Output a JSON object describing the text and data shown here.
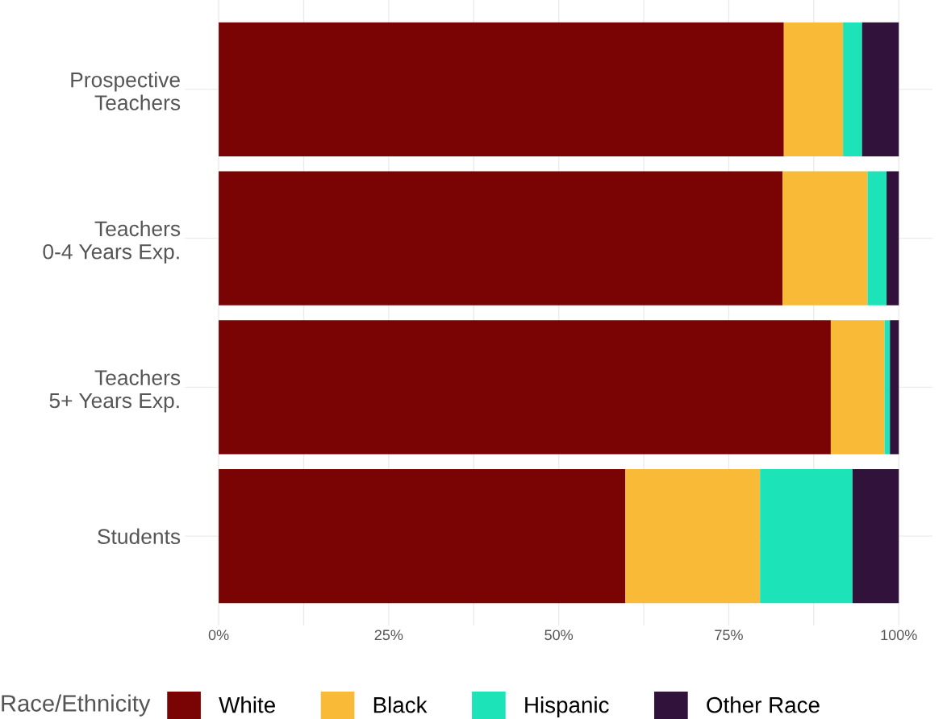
{
  "chart_data": {
    "type": "bar",
    "orientation": "horizontal",
    "stacked": true,
    "categories": [
      "Prospective\nTeachers",
      "Teachers\n0-4 Years Exp.",
      "Teachers\n5+ Years Exp.",
      "Students"
    ],
    "series": [
      {
        "name": "White",
        "color": "#7a0403",
        "values": [
          83.1,
          82.9,
          90.0,
          59.8
        ]
      },
      {
        "name": "Black",
        "color": "#f9ba38",
        "values": [
          8.7,
          12.5,
          7.9,
          19.8
        ]
      },
      {
        "name": "Hispanic",
        "color": "#1de4b8",
        "values": [
          2.8,
          2.8,
          0.8,
          13.6
        ]
      },
      {
        "name": "Other Race",
        "color": "#30123b",
        "values": [
          5.4,
          1.8,
          1.3,
          6.8
        ]
      }
    ],
    "xlim": [
      -5,
      105
    ],
    "xticks": [
      {
        "value": 0,
        "label": "0%"
      },
      {
        "value": 12.5,
        "label": null
      },
      {
        "value": 25,
        "label": "25%"
      },
      {
        "value": 37.5,
        "label": null
      },
      {
        "value": 50,
        "label": "50%"
      },
      {
        "value": 62.5,
        "label": null
      },
      {
        "value": 75,
        "label": "75%"
      },
      {
        "value": 87.5,
        "label": null
      },
      {
        "value": 100,
        "label": "100%"
      }
    ],
    "grid": true,
    "legend": "bottom",
    "legend_title": "Race/Ethnicity"
  }
}
